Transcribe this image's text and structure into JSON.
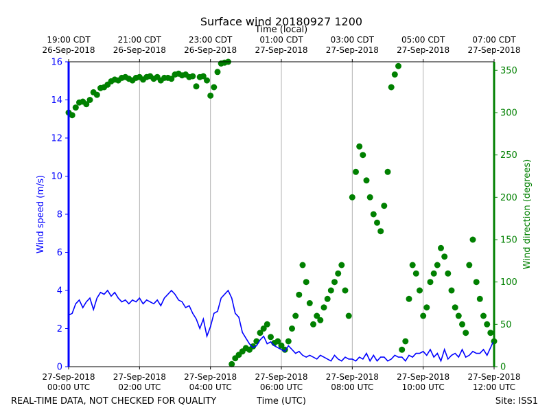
{
  "chart_data": {
    "type": "line+scatter",
    "title": "Surface wind 20180927 1200",
    "top_axis_label": "Time (local)",
    "xlabel": "Time (UTC)",
    "ylabel_left": "Wind speed (m/s)",
    "ylabel_right": "Wind direction (degrees)",
    "footer_left": "REAL-TIME DATA, NOT CHECKED FOR QUALITY",
    "footer_right": "Site: ISS1",
    "xlim_hours_utc": [
      0,
      12
    ],
    "ylim_left": [
      0,
      16
    ],
    "ylim_right": [
      0,
      360
    ],
    "left_ticks": [
      0,
      2,
      4,
      6,
      8,
      10,
      12,
      14,
      16
    ],
    "right_ticks": [
      0,
      50,
      100,
      150,
      200,
      250,
      300,
      350
    ],
    "bottom_ticks": [
      {
        "h": 0,
        "l1": "27-Sep-2018",
        "l2": "00:00 UTC"
      },
      {
        "h": 2,
        "l1": "27-Sep-2018",
        "l2": "02:00 UTC"
      },
      {
        "h": 4,
        "l1": "27-Sep-2018",
        "l2": "04:00 UTC"
      },
      {
        "h": 6,
        "l1": "27-Sep-2018",
        "l2": "06:00 UTC"
      },
      {
        "h": 8,
        "l1": "27-Sep-2018",
        "l2": "08:00 UTC"
      },
      {
        "h": 10,
        "l1": "27-Sep-2018",
        "l2": "10:00 UTC"
      },
      {
        "h": 12,
        "l1": "27-Sep-2018",
        "l2": "12:00 UTC"
      }
    ],
    "top_ticks": [
      {
        "h": 0,
        "l1": "19:00 CDT",
        "l2": "26-Sep-2018"
      },
      {
        "h": 2,
        "l1": "21:00 CDT",
        "l2": "26-Sep-2018"
      },
      {
        "h": 4,
        "l1": "23:00 CDT",
        "l2": "26-Sep-2018"
      },
      {
        "h": 6,
        "l1": "01:00 CDT",
        "l2": "27-Sep-2018"
      },
      {
        "h": 8,
        "l1": "03:00 CDT",
        "l2": "27-Sep-2018"
      },
      {
        "h": 10,
        "l1": "05:00 CDT",
        "l2": "27-Sep-2018"
      },
      {
        "h": 12,
        "l1": "07:00 CDT",
        "l2": "27-Sep-2018"
      }
    ],
    "grid": "vertical",
    "series": [
      {
        "name": "Wind speed",
        "axis": "left",
        "style": "line",
        "x_hours": [
          0.0,
          0.1,
          0.2,
          0.3,
          0.4,
          0.5,
          0.6,
          0.7,
          0.8,
          0.9,
          1.0,
          1.1,
          1.2,
          1.3,
          1.4,
          1.5,
          1.6,
          1.7,
          1.8,
          1.9,
          2.0,
          2.1,
          2.2,
          2.3,
          2.4,
          2.5,
          2.6,
          2.7,
          2.8,
          2.9,
          3.0,
          3.1,
          3.2,
          3.3,
          3.4,
          3.5,
          3.6,
          3.7,
          3.8,
          3.9,
          4.0,
          4.1,
          4.2,
          4.3,
          4.4,
          4.5,
          4.6,
          4.7,
          4.8,
          4.9,
          5.0,
          5.1,
          5.2,
          5.3,
          5.4,
          5.5,
          5.6,
          5.7,
          5.8,
          5.9,
          6.0,
          6.1,
          6.2,
          6.3,
          6.4,
          6.5,
          6.6,
          6.7,
          6.8,
          6.9,
          7.0,
          7.1,
          7.2,
          7.3,
          7.4,
          7.5,
          7.6,
          7.7,
          7.8,
          7.9,
          8.0,
          8.1,
          8.2,
          8.3,
          8.4,
          8.5,
          8.6,
          8.7,
          8.8,
          8.9,
          9.0,
          9.1,
          9.2,
          9.3,
          9.4,
          9.5,
          9.6,
          9.7,
          9.8,
          9.9,
          10.0,
          10.1,
          10.2,
          10.3,
          10.4,
          10.5,
          10.6,
          10.7,
          10.8,
          10.9,
          11.0,
          11.1,
          11.2,
          11.3,
          11.4,
          11.5,
          11.6,
          11.7,
          11.8,
          11.9,
          12.0
        ],
        "values": [
          2.7,
          2.8,
          3.3,
          3.5,
          3.1,
          3.4,
          3.6,
          3.0,
          3.6,
          3.9,
          3.8,
          4.0,
          3.7,
          3.9,
          3.6,
          3.4,
          3.5,
          3.3,
          3.5,
          3.4,
          3.6,
          3.3,
          3.5,
          3.4,
          3.3,
          3.5,
          3.2,
          3.6,
          3.8,
          4.0,
          3.8,
          3.5,
          3.4,
          3.1,
          3.2,
          2.8,
          2.5,
          2.0,
          2.5,
          1.6,
          2.1,
          2.8,
          2.9,
          3.6,
          3.8,
          4.0,
          3.6,
          2.8,
          2.6,
          1.8,
          1.5,
          1.2,
          1.0,
          1.1,
          1.4,
          1.6,
          1.2,
          1.3,
          1.1,
          1.0,
          0.9,
          0.8,
          1.1,
          0.9,
          0.7,
          0.8,
          0.6,
          0.5,
          0.6,
          0.5,
          0.4,
          0.6,
          0.5,
          0.4,
          0.3,
          0.6,
          0.4,
          0.3,
          0.5,
          0.4,
          0.4,
          0.3,
          0.5,
          0.4,
          0.7,
          0.3,
          0.6,
          0.3,
          0.5,
          0.5,
          0.3,
          0.4,
          0.6,
          0.5,
          0.5,
          0.3,
          0.6,
          0.5,
          0.7,
          0.7,
          0.8,
          0.6,
          0.9,
          0.5,
          0.7,
          0.3,
          0.9,
          0.4,
          0.6,
          0.7,
          0.5,
          0.9,
          0.5,
          0.6,
          0.8,
          0.7,
          0.7,
          0.9,
          0.6,
          1.0,
          1.4
        ],
        "color": "#0000ff"
      },
      {
        "name": "Wind direction",
        "axis": "right",
        "style": "points",
        "x_hours": [
          0.0,
          0.1,
          0.2,
          0.3,
          0.4,
          0.5,
          0.6,
          0.7,
          0.8,
          0.9,
          1.0,
          1.1,
          1.2,
          1.3,
          1.4,
          1.5,
          1.6,
          1.7,
          1.8,
          1.9,
          2.0,
          2.1,
          2.2,
          2.3,
          2.4,
          2.5,
          2.6,
          2.7,
          2.8,
          2.9,
          3.0,
          3.1,
          3.2,
          3.3,
          3.4,
          3.5,
          3.6,
          3.7,
          3.8,
          3.9,
          4.0,
          4.1,
          4.2,
          4.3,
          4.4,
          4.5,
          4.6,
          4.7,
          4.8,
          4.9,
          5.0,
          5.1,
          5.2,
          5.3,
          5.4,
          5.5,
          5.6,
          5.7,
          5.8,
          5.9,
          6.0,
          6.1,
          6.2,
          6.3,
          6.4,
          6.5,
          6.6,
          6.7,
          6.8,
          6.9,
          7.0,
          7.1,
          7.2,
          7.3,
          7.4,
          7.5,
          7.6,
          7.7,
          7.8,
          7.9,
          8.0,
          8.1,
          8.2,
          8.3,
          8.4,
          8.5,
          8.6,
          8.7,
          8.8,
          8.9,
          9.0,
          9.1,
          9.2,
          9.3,
          9.4,
          9.5,
          9.6,
          9.7,
          9.8,
          9.9,
          10.0,
          10.1,
          10.2,
          10.3,
          10.4,
          10.5,
          10.6,
          10.7,
          10.8,
          10.9,
          11.0,
          11.1,
          11.2,
          11.3,
          11.4,
          11.5,
          11.6,
          11.7,
          11.8,
          11.9,
          12.0
        ],
        "values": [
          300,
          297,
          306,
          312,
          313,
          310,
          315,
          324,
          321,
          329,
          330,
          333,
          337,
          339,
          338,
          341,
          342,
          340,
          338,
          341,
          342,
          339,
          342,
          343,
          340,
          342,
          338,
          341,
          341,
          340,
          345,
          346,
          344,
          345,
          342,
          343,
          331,
          342,
          343,
          338,
          320,
          330,
          348,
          358,
          359,
          360,
          3,
          10,
          14,
          18,
          22,
          20,
          24,
          30,
          40,
          45,
          50,
          35,
          28,
          30,
          25,
          20,
          30,
          45,
          60,
          85,
          120,
          100,
          75,
          50,
          60,
          55,
          70,
          80,
          90,
          100,
          110,
          120,
          90,
          60,
          200,
          230,
          260,
          250,
          220,
          200,
          180,
          170,
          160,
          190,
          230,
          330,
          345,
          355,
          20,
          30,
          80,
          120,
          110,
          90,
          60,
          70,
          100,
          110,
          120,
          140,
          130,
          110,
          90,
          70,
          60,
          50,
          40,
          120,
          150,
          100,
          80,
          60,
          50,
          40,
          30
        ]
      }
    ]
  }
}
